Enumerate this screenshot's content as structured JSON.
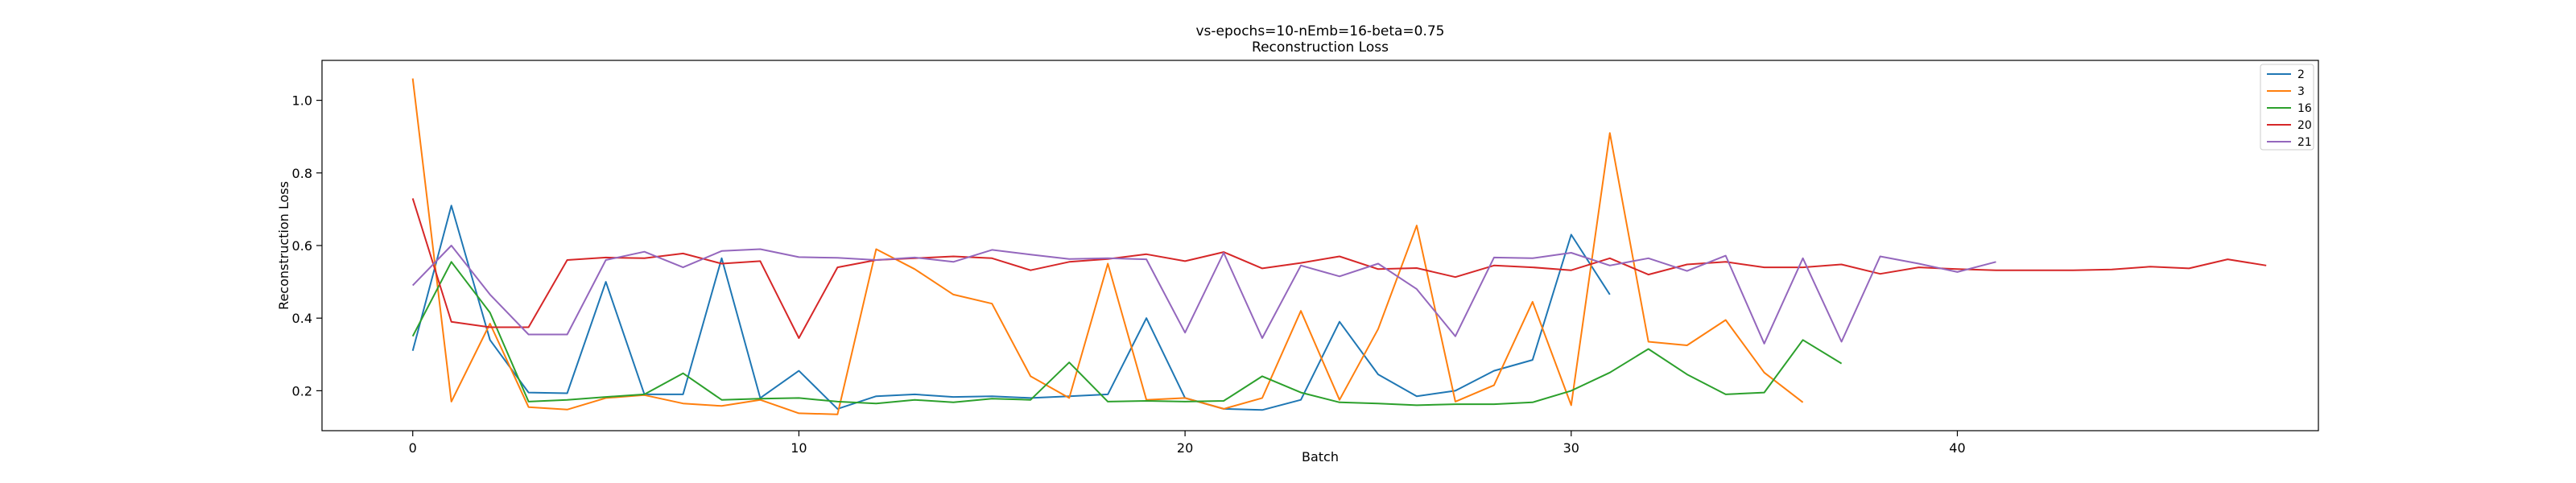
{
  "chart_data": {
    "type": "line",
    "title": "vs-epochs=10-nEmb=16-beta=0.75",
    "subtitle": "Reconstruction Loss",
    "xlabel": "Batch",
    "ylabel": "Reconstruction Loss",
    "xlim": [
      -2.35,
      49.35
    ],
    "ylim": [
      0.09,
      1.11
    ],
    "xticks": [
      0,
      10,
      20,
      30,
      40
    ],
    "yticks": [
      0.2,
      0.4,
      0.6,
      0.8,
      1.0
    ],
    "grid": false,
    "legend_position": "top-right",
    "series": [
      {
        "name": "2",
        "color": "#1f77b4",
        "values": [
          0.31,
          0.71,
          0.34,
          0.195,
          0.193,
          0.5,
          0.19,
          0.19,
          0.565,
          0.18,
          0.255,
          0.15,
          0.185,
          0.19,
          0.183,
          0.185,
          0.18,
          0.185,
          0.19,
          0.4,
          0.18,
          0.15,
          0.147,
          0.175,
          0.39,
          0.245,
          0.185,
          0.2,
          0.255,
          0.285,
          0.63,
          0.465
        ]
      },
      {
        "name": "3",
        "color": "#ff7f0e",
        "values": [
          1.06,
          0.17,
          0.385,
          0.155,
          0.148,
          0.18,
          0.188,
          0.165,
          0.158,
          0.175,
          0.138,
          0.135,
          0.59,
          0.535,
          0.465,
          0.44,
          0.24,
          0.18,
          0.55,
          0.175,
          0.18,
          0.15,
          0.18,
          0.42,
          0.175,
          0.37,
          0.655,
          0.17,
          0.215,
          0.445,
          0.16,
          0.91,
          0.335,
          0.325,
          0.395,
          0.25,
          0.168
        ]
      },
      {
        "name": "16",
        "color": "#2ca02c",
        "values": [
          0.35,
          0.555,
          0.415,
          0.17,
          0.175,
          0.183,
          0.19,
          0.248,
          0.175,
          0.178,
          0.18,
          0.17,
          0.165,
          0.175,
          0.168,
          0.178,
          0.175,
          0.278,
          0.17,
          0.172,
          0.17,
          0.172,
          0.24,
          0.195,
          0.168,
          0.165,
          0.16,
          0.163,
          0.163,
          0.168,
          0.2,
          0.25,
          0.315,
          0.245,
          0.19,
          0.195,
          0.34,
          0.275
        ]
      },
      {
        "name": "20",
        "color": "#d62728",
        "values": [
          0.73,
          0.39,
          0.375,
          0.375,
          0.56,
          0.567,
          0.565,
          0.578,
          0.55,
          0.557,
          0.345,
          0.54,
          0.56,
          0.565,
          0.57,
          0.565,
          0.532,
          0.555,
          0.563,
          0.576,
          0.557,
          0.582,
          0.537,
          0.552,
          0.57,
          0.535,
          0.538,
          0.513,
          0.545,
          0.54,
          0.532,
          0.565,
          0.52,
          0.548,
          0.555,
          0.54,
          0.54,
          0.548,
          0.522,
          0.54,
          0.535,
          0.532,
          0.532,
          0.532,
          0.534,
          0.542,
          0.537,
          0.562,
          0.545
        ]
      },
      {
        "name": "21",
        "color": "#9467bd",
        "values": [
          0.49,
          0.6,
          0.465,
          0.355,
          0.355,
          0.56,
          0.583,
          0.54,
          0.585,
          0.59,
          0.568,
          0.566,
          0.56,
          0.567,
          0.555,
          0.588,
          0.575,
          0.563,
          0.565,
          0.562,
          0.36,
          0.58,
          0.345,
          0.545,
          0.515,
          0.55,
          0.48,
          0.35,
          0.567,
          0.565,
          0.58,
          0.545,
          0.565,
          0.53,
          0.572,
          0.33,
          0.565,
          0.335,
          0.57,
          0.55,
          0.527,
          0.555
        ]
      }
    ]
  }
}
